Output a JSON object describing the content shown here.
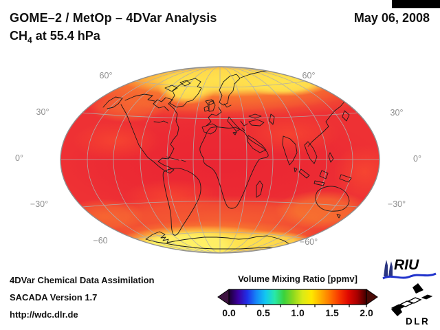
{
  "header": {
    "title_line1": "GOME–2 / MetOp – 4DVar Analysis",
    "title_line2_prefix": "CH",
    "title_line2_sub": "4",
    "title_line2_suffix": " at 55.4 hPa",
    "date": "May 06, 2008"
  },
  "map": {
    "lat_labels": {
      "left": [
        "60°",
        "30°",
        "0°",
        "−30°",
        "−60"
      ],
      "right": [
        "60°",
        "30°",
        "0°",
        "−30°",
        "−60°"
      ]
    }
  },
  "footer": {
    "line1": "4DVar Chemical Data Assimilation",
    "line2": "SACADA Version 1.7",
    "line3": "http://wdc.dlr.de"
  },
  "colorbar": {
    "title": "Volume Mixing Ratio [ppmv]",
    "ticks": [
      "0.0",
      "0.5",
      "1.0",
      "1.5",
      "2.0"
    ],
    "min": 0.0,
    "max": 2.0,
    "unit": "ppmv",
    "gradient": [
      "#1c0030",
      "#3c00a0",
      "#1f30e8",
      "#1588f8",
      "#12c8f0",
      "#28e8a8",
      "#3ad23c",
      "#8cd81e",
      "#d8ea18",
      "#ffe800",
      "#ffb000",
      "#ff7600",
      "#f83800",
      "#e00800",
      "#a80000",
      "#400000"
    ],
    "left_arrow_color": "#3d1240",
    "right_arrow_color": "#4a0a06"
  },
  "logos": {
    "riu": "RIU",
    "dlr": "DLR"
  },
  "palette": {
    "map_base_red": "#ee3134",
    "map_crimson": "#e81f32",
    "map_orange": "#fb8c2e",
    "map_yellow": "#ffe24e",
    "graticule_gray": "#b0aeac",
    "lat_label_gray": "#8f8f8f",
    "riu_blue": "#2133cc",
    "cathedral_navy": "#2a3580"
  },
  "chart_data": {
    "type": "heatmap",
    "title": "GOME–2 / MetOp – 4DVar Analysis",
    "subtitle": "CH4 at 55.4 hPa",
    "date": "May 06, 2008",
    "variable": "CH4 volume mixing ratio",
    "unit": "ppmv",
    "colorbar_range": [
      0.0,
      2.0
    ],
    "colorbar_ticks": [
      0.0,
      0.5,
      1.0,
      1.5,
      2.0
    ],
    "projection": "global ellipse (Hammer/Mollweide style), graticule every 30°, coastlines overlaid",
    "approx_zonal_means_ppmv": {
      "75N-90N": 1.35,
      "60N-75N": 1.3,
      "45N-60N": 1.45,
      "30N-45N": 1.55,
      "0N-30N": 1.65,
      "0S-30S": 1.65,
      "30S-45S": 1.6,
      "45S-60S": 1.45,
      "60S-90S": 1.22
    }
  }
}
